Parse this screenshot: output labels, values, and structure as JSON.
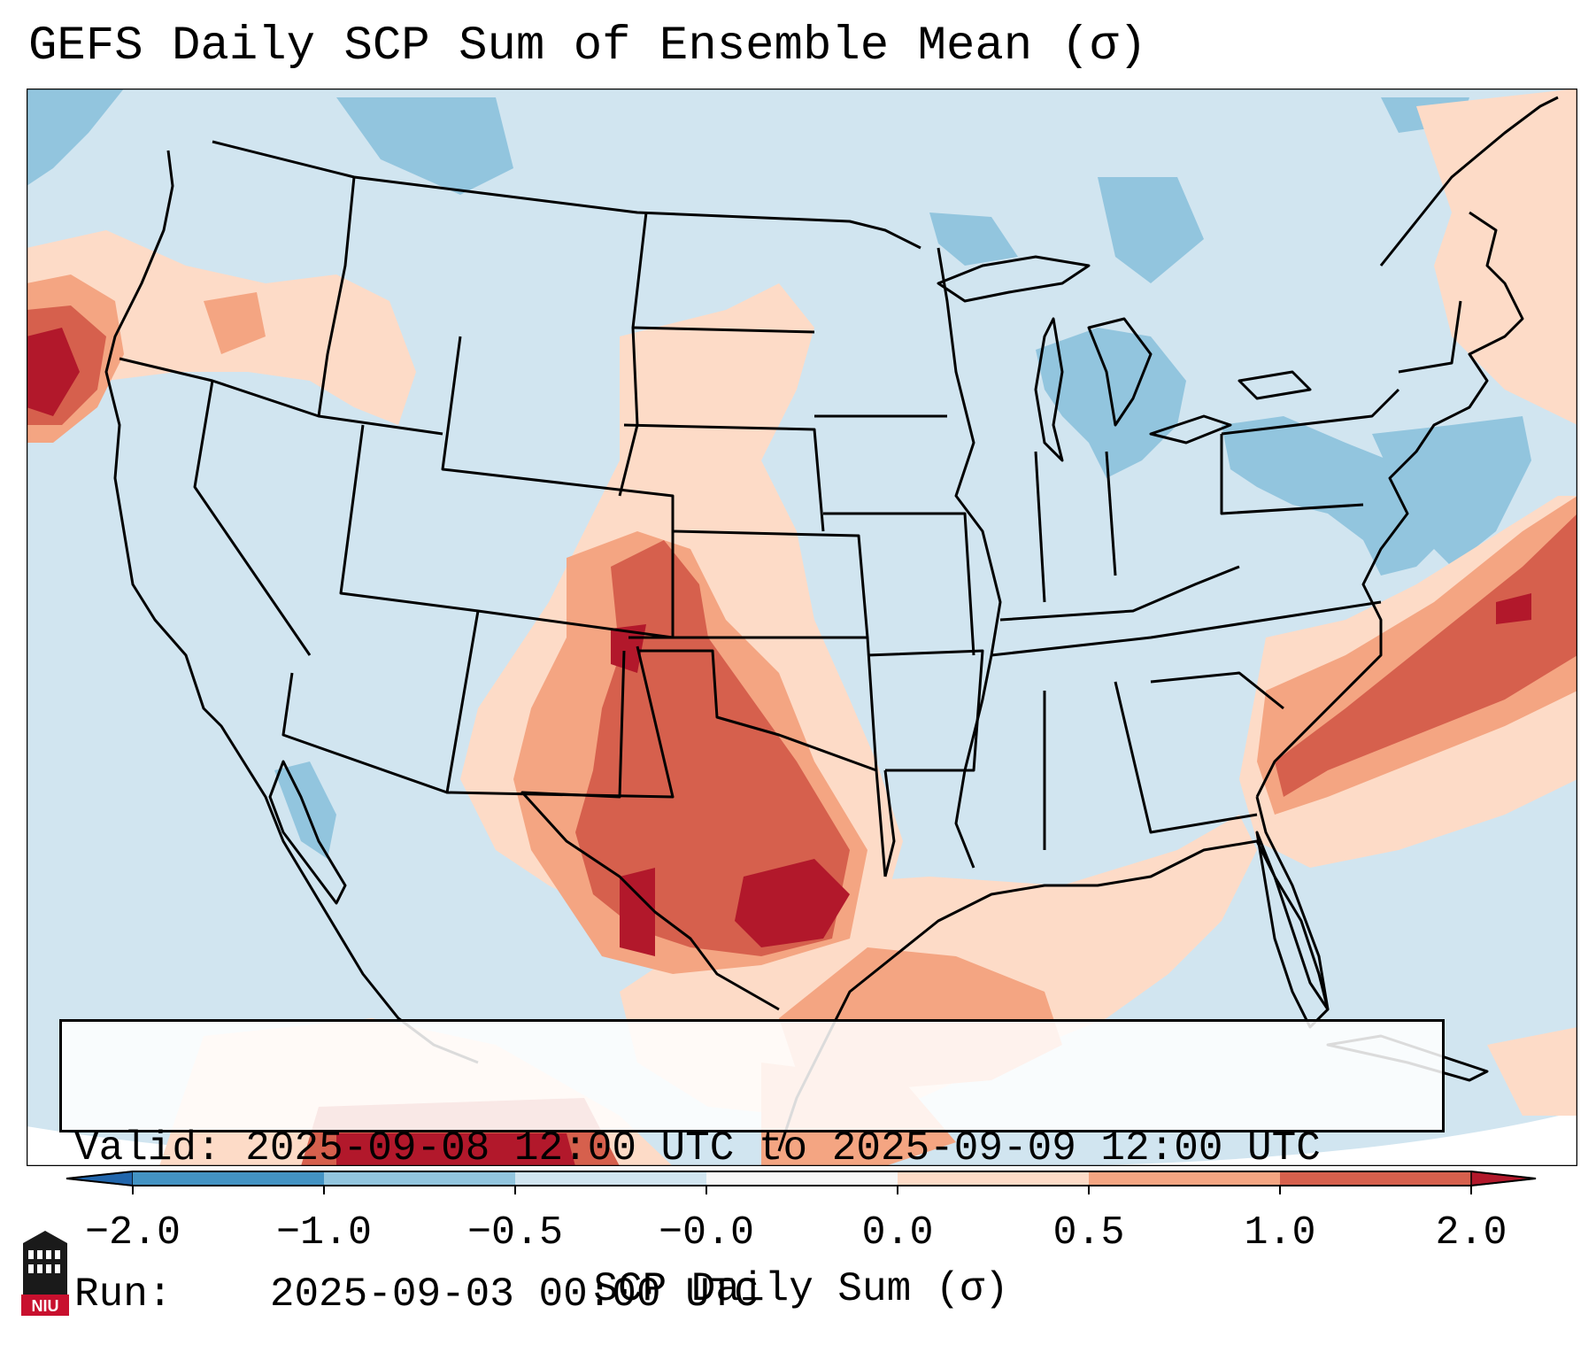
{
  "title": "GEFS Daily SCP Sum of Ensemble Mean (σ)",
  "info": {
    "valid_label": "Valid:",
    "valid_value": "2025-09-08 12:00 UTC to 2025-09-09 12:00 UTC",
    "run_label": "Run:",
    "run_value": "2025-09-03 00:00 UTC"
  },
  "colorbar": {
    "label": "SCP Daily Sum (σ)",
    "ticks": [
      "−2.0",
      "−1.0",
      "−0.5",
      "−0.0",
      "0.0",
      "0.5",
      "1.0",
      "2.0"
    ],
    "colors": [
      "#4393c3",
      "#92c5de",
      "#d1e5f0",
      "#f7f7f7",
      "#fddbc7",
      "#f4a582",
      "#d6604d",
      "#b2182b"
    ],
    "extend_min_color": "#2166ac",
    "extend_max_color": "#b2182b"
  },
  "map": {
    "background_color": "#d1e5f0",
    "anomaly_regions": [
      {
        "name": "southern-plains-texas",
        "level": "1.0 to 2.0",
        "color": "#d6604d"
      },
      {
        "name": "central-texas-core",
        "level": "> 2.0",
        "color": "#b2182b"
      },
      {
        "name": "atlantic-offshore-band",
        "level": "1.0 to 2.0",
        "color": "#d6604d"
      },
      {
        "name": "pacific-northwest-offshore",
        "level": "1.0 to 2.0",
        "color": "#d6604d"
      },
      {
        "name": "gulf-of-mexico",
        "level": "0.0 to 0.5",
        "color": "#fddbc7"
      },
      {
        "name": "great-lakes-mid-atlantic",
        "level": "-1.0 to -0.5",
        "color": "#92c5de"
      }
    ]
  },
  "logo": {
    "text": "NIU",
    "color": "#c8102e"
  }
}
